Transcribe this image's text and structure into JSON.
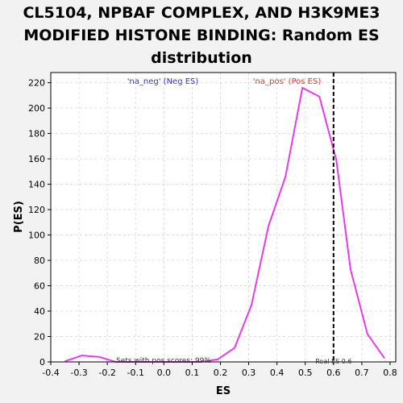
{
  "chart_data": {
    "type": "line",
    "title_lines": [
      "CL5104, NPBAF COMPLEX, AND H3K9ME3",
      "MODIFIED HISTONE BINDING: Random ES",
      "distribution"
    ],
    "xlabel": "ES",
    "ylabel": "P(ES)",
    "xlim": [
      -0.4,
      0.82
    ],
    "ylim": [
      0,
      228
    ],
    "x_ticks": [
      "-0.4",
      "-0.3",
      "-0.2",
      "-0.1",
      "0.0",
      "0.1",
      "0.2",
      "0.3",
      "0.4",
      "0.5",
      "0.6",
      "0.7",
      "0.8"
    ],
    "y_ticks": [
      "0",
      "20",
      "40",
      "60",
      "80",
      "100",
      "120",
      "140",
      "160",
      "180",
      "200",
      "220"
    ],
    "grid": true,
    "series": [
      {
        "color": "#e83ae8",
        "x": [
          -0.35,
          -0.29,
          -0.23,
          -0.17,
          -0.11,
          -0.05,
          0.01,
          0.07,
          0.13,
          0.19,
          0.25,
          0.31,
          0.37,
          0.43,
          0.49,
          0.55,
          0.61,
          0.66,
          0.72,
          0.78
        ],
        "y": [
          0.5,
          5,
          4,
          0,
          0,
          0,
          0,
          0,
          0,
          2,
          11,
          45,
          107,
          146,
          216,
          209,
          159,
          73,
          22,
          3
        ]
      }
    ],
    "real_es": {
      "x": 0.6,
      "label": "Real ES 0.6"
    },
    "annotations": {
      "neg_label": "'na_neg' (Neg ES)",
      "neg_color": "#3333cc",
      "pos_label": "'na_pos' (Pos ES)",
      "pos_color": "#e83333",
      "pos_scores": "Sets with pos scores: 99%"
    }
  }
}
